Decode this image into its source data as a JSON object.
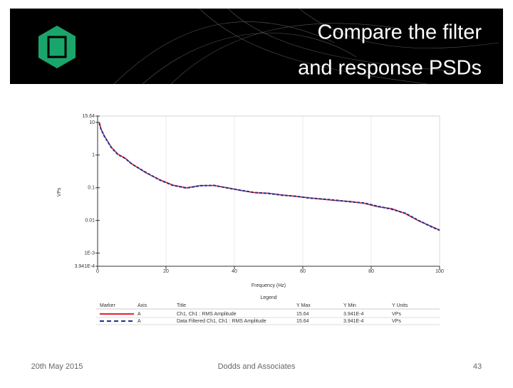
{
  "slide": {
    "title_lines": [
      "Compare the filter",
      "and response PSDs"
    ],
    "footer_left": "20th May 2015",
    "footer_center": "Dodds and Associates",
    "page_number": "43"
  },
  "chart_data": {
    "type": "line",
    "x_label": "Frequency (Hz)",
    "y_label": "VPs",
    "x": [
      0.5,
      1,
      2,
      4,
      6,
      8,
      10,
      14,
      18,
      22,
      26,
      30,
      34,
      38,
      42,
      46,
      50,
      54,
      58,
      62,
      66,
      70,
      74,
      78,
      82,
      86,
      90,
      94,
      98,
      100
    ],
    "series": [
      {
        "name": "Ch1, Ch1 : RMS Amplitude",
        "color": "#e8202a",
        "dash": false,
        "values": [
          10,
          6.3,
          3.8,
          1.75,
          1.05,
          0.81,
          0.54,
          0.29,
          0.18,
          0.12,
          0.1,
          0.117,
          0.117,
          0.1,
          0.082,
          0.07,
          0.068,
          0.06,
          0.054,
          0.049,
          0.044,
          0.04,
          0.038,
          0.033,
          0.026,
          0.023,
          0.016,
          0.0095,
          0.0063,
          0.0051
        ]
      },
      {
        "name": "Data Filtered Ch1, Ch1 : RMS Amplitude",
        "color": "#1f2f8f",
        "dash": true,
        "values": [
          9.6,
          6.1,
          3.7,
          1.7,
          1.02,
          0.8,
          0.53,
          0.3,
          0.175,
          0.118,
          0.098,
          0.115,
          0.118,
          0.098,
          0.083,
          0.071,
          0.067,
          0.059,
          0.055,
          0.048,
          0.045,
          0.041,
          0.037,
          0.034,
          0.027,
          0.022,
          0.0165,
          0.0098,
          0.0061,
          0.005
        ]
      }
    ],
    "xlim": [
      0,
      100
    ],
    "xticks": [
      0,
      20,
      40,
      60,
      80,
      100
    ],
    "ylim": [
      0.0003941,
      15.64
    ],
    "log_y": true,
    "yticks": [
      {
        "value": 0.0003941,
        "label": "3.941E-4"
      },
      {
        "value": 0.001,
        "label": "1E-3"
      },
      0.01,
      0.1,
      1,
      10,
      15.64
    ],
    "grid": "x",
    "legend": {
      "title": "Legend",
      "headers": [
        "Marker",
        "Axis",
        "Title",
        "Y Max",
        "Y Min",
        "Y Units"
      ],
      "rows": [
        [
          "A",
          "15.64",
          "3.941E-4",
          "VPs"
        ],
        [
          "A",
          "15.64",
          "3.941E-4",
          "VPs"
        ]
      ]
    }
  }
}
